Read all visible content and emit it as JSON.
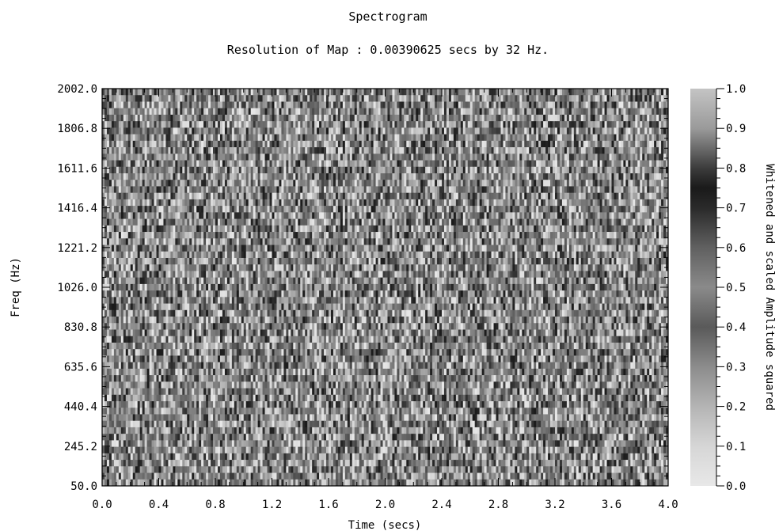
{
  "chart_data": {
    "type": "heatmap",
    "title": "Spectrogram",
    "subtitle": "Resolution of Map : 0.00390625 secs by 32 Hz.",
    "xlabel": "Time (secs)",
    "ylabel": "Freq (Hz)",
    "colorbar_label": "Whitened and scaled Amplitude squared",
    "xlim": [
      0.0,
      4.0
    ],
    "ylim": [
      50.0,
      2002.0
    ],
    "clim": [
      0.0,
      1.0
    ],
    "x_ticks": [
      "0.0",
      "0.4",
      "0.8",
      "1.2",
      "1.6",
      "2.0",
      "2.4",
      "2.8",
      "3.2",
      "3.6",
      "4.0"
    ],
    "y_ticks": [
      "50.0",
      "245.2",
      "440.4",
      "635.6",
      "830.8",
      "1026.0",
      "1221.2",
      "1416.4",
      "1611.6",
      "1806.8",
      "2002.0"
    ],
    "colorbar_ticks": [
      "0.0",
      "0.1",
      "0.2",
      "0.3",
      "0.4",
      "0.5",
      "0.6",
      "0.7",
      "0.8",
      "0.9",
      "1.0"
    ],
    "time_resolution_secs": 0.00390625,
    "freq_resolution_hz": 32,
    "colormap": [
      [
        0.0,
        "#e8e8e8"
      ],
      [
        0.1,
        "#d6d6d6"
      ],
      [
        0.2,
        "#b4b4b4"
      ],
      [
        0.3,
        "#8c8c8c"
      ],
      [
        0.4,
        "#5a5a5a"
      ],
      [
        0.5,
        "#8a8a8a"
      ],
      [
        0.6,
        "#606060"
      ],
      [
        0.7,
        "#2a2a2a"
      ],
      [
        0.75,
        "#1a1a1a"
      ],
      [
        0.8,
        "#3c3c3c"
      ],
      [
        0.9,
        "#9a9a9a"
      ],
      [
        1.0,
        "#c4c4c4"
      ]
    ]
  }
}
